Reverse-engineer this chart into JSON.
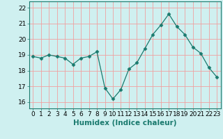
{
  "x": [
    0,
    1,
    2,
    3,
    4,
    5,
    6,
    7,
    8,
    9,
    10,
    11,
    12,
    13,
    14,
    15,
    16,
    17,
    18,
    19,
    20,
    21,
    22,
    23
  ],
  "y": [
    18.9,
    18.8,
    19.0,
    18.9,
    18.8,
    18.4,
    18.8,
    18.9,
    19.2,
    16.9,
    16.2,
    16.8,
    18.1,
    18.5,
    19.4,
    20.3,
    20.9,
    21.6,
    20.8,
    20.3,
    19.5,
    19.1,
    18.2,
    17.6
  ],
  "line_color": "#1a7a6e",
  "marker": "D",
  "marker_size": 2.5,
  "bg_color": "#cff0f0",
  "grid_color": "#f0a0a0",
  "xlabel": "Humidex (Indice chaleur)",
  "ylim": [
    15.6,
    22.4
  ],
  "yticks": [
    16,
    17,
    18,
    19,
    20,
    21,
    22
  ],
  "xticks": [
    0,
    1,
    2,
    3,
    4,
    5,
    6,
    7,
    8,
    9,
    10,
    11,
    12,
    13,
    14,
    15,
    16,
    17,
    18,
    19,
    20,
    21,
    22,
    23
  ],
  "tick_fontsize": 6.5,
  "xlabel_fontsize": 7.5
}
